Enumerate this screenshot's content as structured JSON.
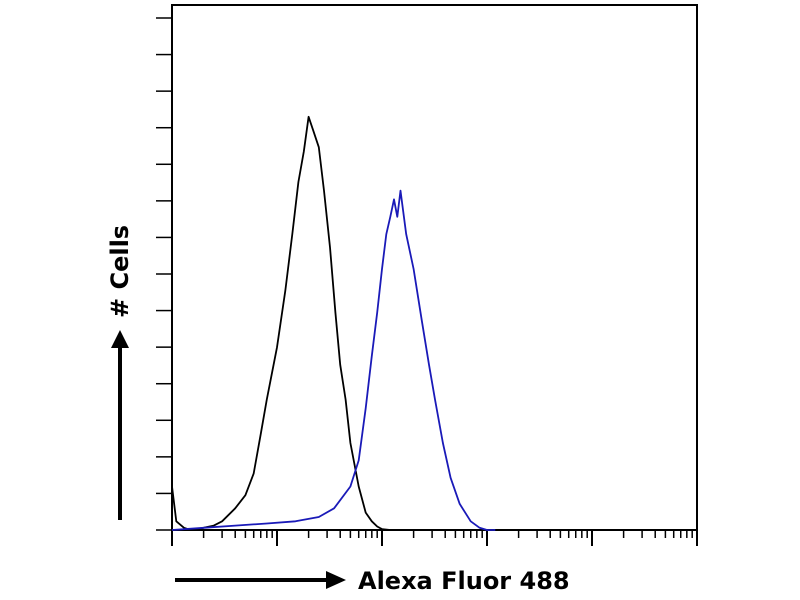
{
  "chart_data": {
    "type": "line",
    "title": "",
    "xlabel": "Alexa Fluor 488",
    "ylabel": "# Cells",
    "xscale": "log",
    "xlim": [
      1,
      100000
    ],
    "ylim": [
      0,
      1
    ],
    "grid": false,
    "legend": "none",
    "series": [
      {
        "color": "#000000",
        "x": [
          1,
          1.1,
          1.3,
          1.5,
          2,
          2.5,
          3,
          4,
          5,
          6,
          7,
          8,
          10,
          12,
          14,
          16,
          18,
          20,
          22,
          25,
          28,
          32,
          36,
          40,
          45,
          50,
          60,
          70,
          80,
          90,
          100,
          120,
          150,
          200
        ],
        "y": [
          0.1,
          0.02,
          0.005,
          0,
          0.005,
          0.01,
          0.02,
          0.05,
          0.08,
          0.13,
          0.22,
          0.3,
          0.42,
          0.55,
          0.68,
          0.8,
          0.87,
          0.95,
          0.92,
          0.88,
          0.78,
          0.65,
          0.5,
          0.38,
          0.3,
          0.2,
          0.1,
          0.04,
          0.02,
          0.008,
          0.002,
          0,
          0,
          0
        ]
      },
      {
        "color": "#1a1ab8",
        "x": [
          1,
          2,
          4,
          8,
          15,
          25,
          35,
          50,
          60,
          70,
          80,
          90,
          100,
          110,
          120,
          130,
          140,
          150,
          170,
          200,
          240,
          280,
          320,
          380,
          450,
          550,
          700,
          850,
          1000,
          1200
        ],
        "y": [
          0,
          0.005,
          0.01,
          0.015,
          0.02,
          0.03,
          0.05,
          0.1,
          0.16,
          0.28,
          0.4,
          0.5,
          0.6,
          0.68,
          0.72,
          0.76,
          0.72,
          0.78,
          0.68,
          0.6,
          0.48,
          0.38,
          0.3,
          0.2,
          0.12,
          0.06,
          0.02,
          0.005,
          0,
          0
        ]
      }
    ]
  }
}
